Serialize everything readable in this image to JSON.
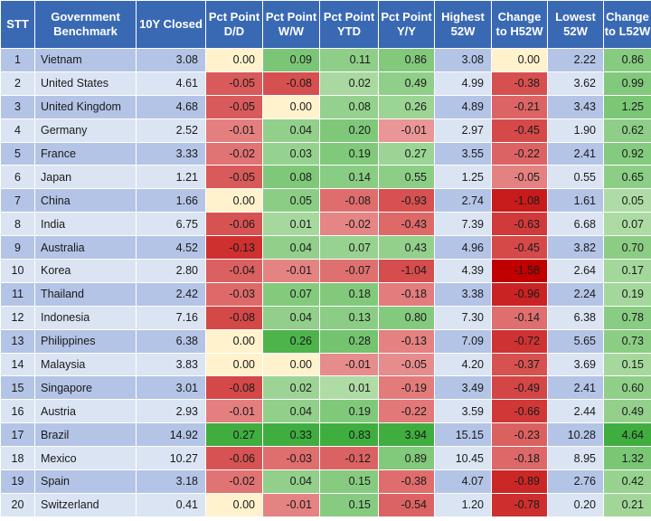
{
  "headers": {
    "stt": "STT",
    "benchmark": "Government Benchmark",
    "closed": "10Y Closed",
    "dd": "Pct Point D/D",
    "ww": "Pct Point W/W",
    "ytd": "Pct Point YTD",
    "yy": "Pct Point Y/Y",
    "h52": "Highest 52W",
    "ch52": "Change to H52W",
    "l52": "Lowest 52W",
    "cl52": "Change to L52W"
  },
  "rows": [
    {
      "stt": "1",
      "country": "Vietnam",
      "closed": "3.08",
      "dd": "0.00",
      "ww": "0.09",
      "ytd": "0.11",
      "yy": "0.86",
      "h52": "3.08",
      "ch52": "0.00",
      "l52": "2.22",
      "cl52": "0.86"
    },
    {
      "stt": "2",
      "country": "United States",
      "closed": "4.61",
      "dd": "-0.05",
      "ww": "-0.08",
      "ytd": "0.02",
      "yy": "0.49",
      "h52": "4.99",
      "ch52": "-0.38",
      "l52": "3.62",
      "cl52": "0.99"
    },
    {
      "stt": "3",
      "country": "United Kingdom",
      "closed": "4.68",
      "dd": "-0.05",
      "ww": "0.00",
      "ytd": "0.08",
      "yy": "0.26",
      "h52": "4.89",
      "ch52": "-0.21",
      "l52": "3.43",
      "cl52": "1.25"
    },
    {
      "stt": "4",
      "country": "Germany",
      "closed": "2.52",
      "dd": "-0.01",
      "ww": "0.04",
      "ytd": "0.20",
      "yy": "-0.01",
      "h52": "2.97",
      "ch52": "-0.45",
      "l52": "1.90",
      "cl52": "0.62"
    },
    {
      "stt": "5",
      "country": "France",
      "closed": "3.33",
      "dd": "-0.02",
      "ww": "0.03",
      "ytd": "0.19",
      "yy": "0.27",
      "h52": "3.55",
      "ch52": "-0.22",
      "l52": "2.41",
      "cl52": "0.92"
    },
    {
      "stt": "6",
      "country": "Japan",
      "closed": "1.21",
      "dd": "-0.05",
      "ww": "0.08",
      "ytd": "0.14",
      "yy": "0.55",
      "h52": "1.25",
      "ch52": "-0.05",
      "l52": "0.55",
      "cl52": "0.65"
    },
    {
      "stt": "7",
      "country": "China",
      "closed": "1.66",
      "dd": "0.00",
      "ww": "0.05",
      "ytd": "-0.08",
      "yy": "-0.93",
      "h52": "2.74",
      "ch52": "-1.08",
      "l52": "1.61",
      "cl52": "0.05"
    },
    {
      "stt": "8",
      "country": "India",
      "closed": "6.75",
      "dd": "-0.06",
      "ww": "0.01",
      "ytd": "-0.02",
      "yy": "-0.43",
      "h52": "7.39",
      "ch52": "-0.63",
      "l52": "6.68",
      "cl52": "0.07"
    },
    {
      "stt": "9",
      "country": "Australia",
      "closed": "4.52",
      "dd": "-0.13",
      "ww": "0.04",
      "ytd": "0.07",
      "yy": "0.43",
      "h52": "4.96",
      "ch52": "-0.45",
      "l52": "3.82",
      "cl52": "0.70"
    },
    {
      "stt": "10",
      "country": "Korea",
      "closed": "2.80",
      "dd": "-0.04",
      "ww": "-0.01",
      "ytd": "-0.07",
      "yy": "-1.04",
      "h52": "4.39",
      "ch52": "-1.58",
      "l52": "2.64",
      "cl52": "0.17"
    },
    {
      "stt": "11",
      "country": "Thailand",
      "closed": "2.42",
      "dd": "-0.03",
      "ww": "0.07",
      "ytd": "0.18",
      "yy": "-0.18",
      "h52": "3.38",
      "ch52": "-0.96",
      "l52": "2.24",
      "cl52": "0.19"
    },
    {
      "stt": "12",
      "country": "Indonesia",
      "closed": "7.16",
      "dd": "-0.08",
      "ww": "0.04",
      "ytd": "0.13",
      "yy": "0.80",
      "h52": "7.30",
      "ch52": "-0.14",
      "l52": "6.38",
      "cl52": "0.78"
    },
    {
      "stt": "13",
      "country": "Philippines",
      "closed": "6.38",
      "dd": "0.00",
      "ww": "0.26",
      "ytd": "0.28",
      "yy": "-0.13",
      "h52": "7.09",
      "ch52": "-0.72",
      "l52": "5.65",
      "cl52": "0.73"
    },
    {
      "stt": "14",
      "country": "Malaysia",
      "closed": "3.83",
      "dd": "0.00",
      "ww": "0.00",
      "ytd": "-0.01",
      "yy": "-0.05",
      "h52": "4.20",
      "ch52": "-0.37",
      "l52": "3.69",
      "cl52": "0.15"
    },
    {
      "stt": "15",
      "country": "Singapore",
      "closed": "3.01",
      "dd": "-0.08",
      "ww": "0.02",
      "ytd": "0.01",
      "yy": "-0.19",
      "h52": "3.49",
      "ch52": "-0.49",
      "l52": "2.41",
      "cl52": "0.60"
    },
    {
      "stt": "16",
      "country": "Austria",
      "closed": "2.93",
      "dd": "-0.01",
      "ww": "0.04",
      "ytd": "0.19",
      "yy": "-0.22",
      "h52": "3.59",
      "ch52": "-0.66",
      "l52": "2.44",
      "cl52": "0.49"
    },
    {
      "stt": "17",
      "country": "Brazil",
      "closed": "14.92",
      "dd": "0.27",
      "ww": "0.33",
      "ytd": "0.83",
      "yy": "3.94",
      "h52": "15.15",
      "ch52": "-0.23",
      "l52": "10.28",
      "cl52": "4.64"
    },
    {
      "stt": "18",
      "country": "Mexico",
      "closed": "10.27",
      "dd": "-0.06",
      "ww": "-0.03",
      "ytd": "-0.12",
      "yy": "0.89",
      "h52": "10.45",
      "ch52": "-0.18",
      "l52": "8.95",
      "cl52": "1.32"
    },
    {
      "stt": "19",
      "country": "Spain",
      "closed": "3.18",
      "dd": "-0.02",
      "ww": "0.04",
      "ytd": "0.15",
      "yy": "-0.38",
      "h52": "4.07",
      "ch52": "-0.89",
      "l52": "2.76",
      "cl52": "0.42"
    },
    {
      "stt": "20",
      "country": "Switzerland",
      "closed": "0.41",
      "dd": "0.00",
      "ww": "-0.01",
      "ytd": "0.15",
      "yy": "-0.54",
      "h52": "1.20",
      "ch52": "-0.78",
      "l52": "0.20",
      "cl52": "0.21"
    }
  ],
  "colors": {
    "header_bg": "#3a69b4",
    "row_odd": "#b4c4e6",
    "row_even": "#dbe4f3",
    "neutral_yellow": "#fff2cc"
  }
}
